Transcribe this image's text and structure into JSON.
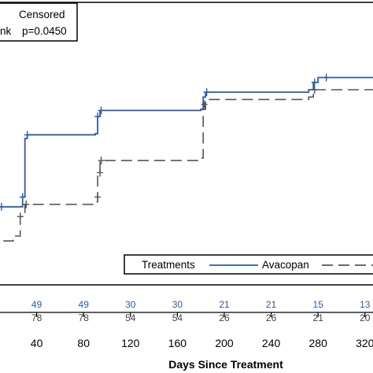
{
  "chart_data": {
    "type": "line",
    "xlabel": "Days Since Treatment",
    "xticks": [
      40,
      80,
      120,
      160,
      200,
      240,
      280,
      320
    ],
    "xlim": [
      0,
      335
    ],
    "ylim": [
      0,
      1
    ],
    "censor_legend": {
      "label": "Censored",
      "test_label": "nk",
      "test_value": "p=0.0450"
    },
    "treatment_legend": {
      "title": "Treatments",
      "entries": [
        "Avacopan"
      ]
    },
    "colors": {
      "avacopan": "#2a5ca8",
      "comparator": "#555555",
      "risk_top": "#2a5ca8",
      "risk_bottom": "#444444"
    },
    "series": [
      {
        "name": "Avacopan",
        "style": "solid",
        "points": [
          [
            0,
            0.1
          ],
          [
            2,
            0.2
          ],
          [
            5,
            0.28
          ],
          [
            8,
            0.32
          ],
          [
            28,
            0.36
          ],
          [
            30,
            0.6
          ],
          [
            32,
            0.615
          ],
          [
            90,
            0.62
          ],
          [
            92,
            0.69
          ],
          [
            94,
            0.715
          ],
          [
            180,
            0.72
          ],
          [
            182,
            0.77
          ],
          [
            184,
            0.79
          ],
          [
            272,
            0.8
          ],
          [
            276,
            0.83
          ],
          [
            280,
            0.85
          ],
          [
            335,
            0.85
          ]
        ],
        "censored": [
          [
            4,
            0.28
          ],
          [
            10,
            0.32
          ],
          [
            28,
            0.36
          ],
          [
            32,
            0.615
          ],
          [
            92,
            0.69
          ],
          [
            95,
            0.715
          ],
          [
            185,
            0.79
          ],
          [
            277,
            0.83
          ],
          [
            287,
            0.85
          ]
        ]
      },
      {
        "name": "",
        "style": "dashed",
        "points": [
          [
            0,
            0.1
          ],
          [
            8,
            0.18
          ],
          [
            20,
            0.2
          ],
          [
            26,
            0.28
          ],
          [
            30,
            0.33
          ],
          [
            90,
            0.34
          ],
          [
            92,
            0.46
          ],
          [
            94,
            0.51
          ],
          [
            180,
            0.52
          ],
          [
            182,
            0.72
          ],
          [
            184,
            0.76
          ],
          [
            272,
            0.77
          ],
          [
            276,
            0.8
          ],
          [
            335,
            0.81
          ]
        ],
        "censored": [
          [
            26,
            0.28
          ],
          [
            31,
            0.33
          ],
          [
            92,
            0.36
          ],
          [
            94,
            0.46
          ],
          [
            95,
            0.51
          ],
          [
            183,
            0.74
          ],
          [
            277,
            0.8
          ]
        ]
      }
    ],
    "risk_table": {
      "times": [
        40,
        80,
        120,
        160,
        200,
        240,
        280,
        320
      ],
      "top": [
        "49",
        "49",
        "30",
        "30",
        "21",
        "21",
        "15",
        "13"
      ],
      "bottom": [
        "78",
        "78",
        "54",
        "54",
        "26",
        "26",
        "21",
        "20"
      ]
    }
  }
}
